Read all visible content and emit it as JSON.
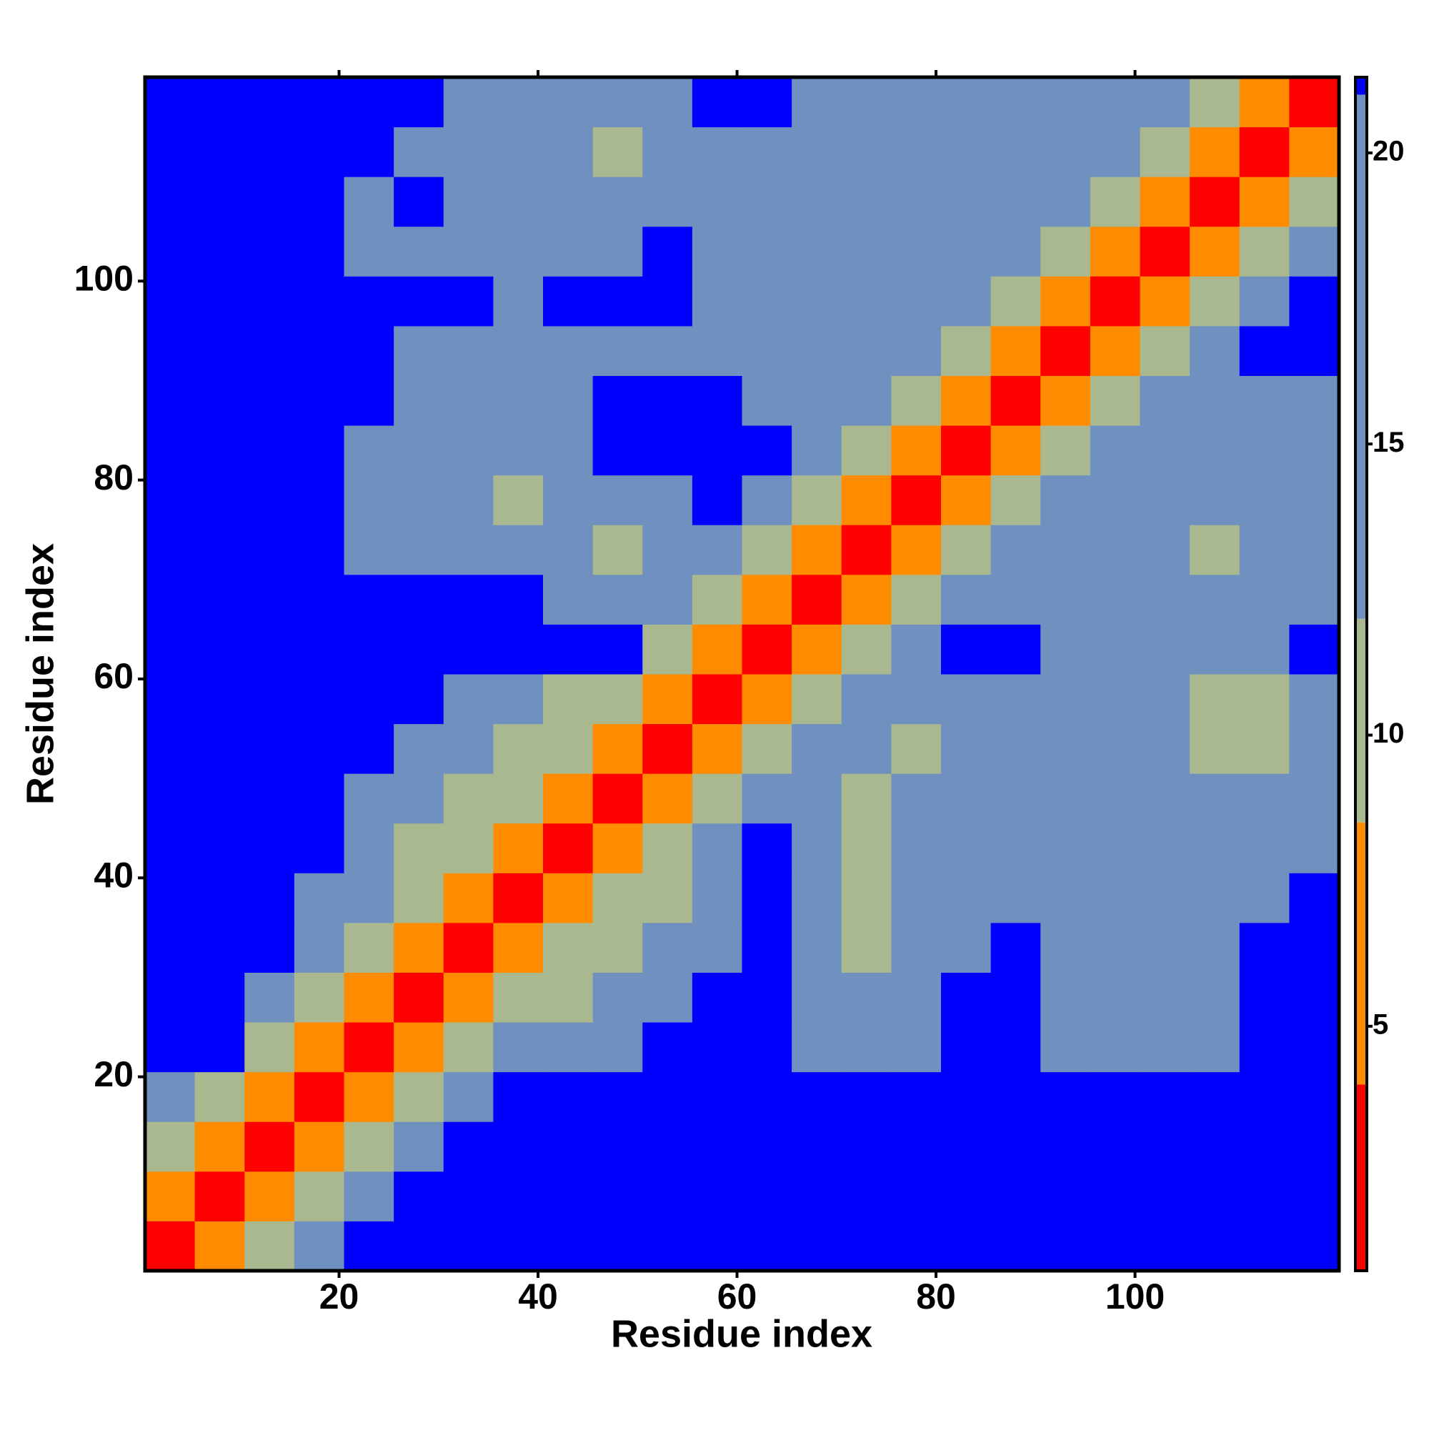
{
  "chart_data": {
    "type": "heatmap",
    "x_label": "Residue index",
    "y_label": "Residue index",
    "xlim": [
      0.5,
      120.5
    ],
    "ylim": [
      0.5,
      120.5
    ],
    "xticks": [
      20,
      40,
      60,
      80,
      100
    ],
    "yticks": [
      20,
      40,
      60,
      80,
      100
    ],
    "xbins": [
      0.5,
      5.5,
      10.5,
      15.5,
      20.5,
      25.5,
      30.5,
      35.5,
      40.5,
      45.5,
      50.5,
      55.5,
      60.5,
      65.5,
      70.5,
      75.5,
      80.5,
      85.5,
      90.5,
      95.5,
      100.5,
      105.5,
      110.5,
      115.5,
      120.5
    ],
    "ybins": [
      0.5,
      5.5,
      10.5,
      15.5,
      20.5,
      25.5,
      30.5,
      35.5,
      40.5,
      45.5,
      50.5,
      55.5,
      60.5,
      65.5,
      70.5,
      75.5,
      80.5,
      85.5,
      90.5,
      95.5,
      100.5,
      105.5,
      110.5,
      115.5,
      120.5
    ],
    "clim": [
      0.8,
      21.3
    ],
    "cticks": [
      5,
      10,
      15,
      20
    ],
    "colorscale": {
      "bounds": [
        4,
        8.5,
        12,
        21
      ],
      "colors": [
        "#ff0000",
        "#ff8c00",
        "#a9b88e",
        "#7090bf",
        "#0000ff"
      ]
    },
    "values": [
      [
        3,
        7,
        11,
        16,
        22,
        22,
        22,
        22,
        22,
        22,
        22,
        22,
        22,
        22,
        22,
        22,
        22,
        22,
        22,
        22,
        22,
        22,
        22,
        22
      ],
      [
        7,
        3,
        7,
        11,
        16,
        22,
        22,
        22,
        22,
        22,
        22,
        22,
        22,
        22,
        22,
        22,
        22,
        22,
        22,
        22,
        22,
        22,
        22,
        22
      ],
      [
        11,
        7,
        3,
        7,
        11,
        16,
        22,
        22,
        22,
        22,
        22,
        22,
        22,
        22,
        22,
        22,
        22,
        22,
        22,
        22,
        22,
        22,
        22,
        22
      ],
      [
        16,
        11,
        7,
        3,
        7,
        11,
        16,
        22,
        22,
        22,
        22,
        22,
        22,
        22,
        22,
        22,
        22,
        22,
        22,
        22,
        22,
        22,
        22,
        22
      ],
      [
        22,
        22,
        11,
        7,
        3,
        7,
        11,
        16,
        16,
        16,
        22,
        22,
        22,
        16,
        16,
        16,
        22,
        22,
        16,
        16,
        16,
        16,
        22,
        22
      ],
      [
        22,
        22,
        16,
        11,
        7,
        3,
        7,
        11,
        11,
        16,
        16,
        22,
        22,
        16,
        16,
        16,
        22,
        22,
        16,
        16,
        16,
        16,
        22,
        22
      ],
      [
        22,
        22,
        22,
        16,
        11,
        7,
        3,
        7,
        11,
        11,
        16,
        16,
        22,
        16,
        11,
        16,
        16,
        22,
        16,
        16,
        16,
        16,
        22,
        22
      ],
      [
        22,
        22,
        22,
        16,
        16,
        11,
        7,
        3,
        7,
        11,
        11,
        16,
        22,
        16,
        11,
        16,
        16,
        16,
        16,
        16,
        16,
        16,
        16,
        22
      ],
      [
        22,
        22,
        22,
        22,
        16,
        11,
        11,
        7,
        3,
        7,
        11,
        16,
        22,
        16,
        11,
        16,
        16,
        16,
        16,
        16,
        16,
        16,
        16,
        16
      ],
      [
        22,
        22,
        22,
        22,
        16,
        16,
        11,
        11,
        7,
        3,
        7,
        11,
        16,
        16,
        11,
        16,
        16,
        16,
        16,
        16,
        16,
        16,
        16,
        16
      ],
      [
        22,
        22,
        22,
        22,
        22,
        16,
        16,
        11,
        11,
        7,
        3,
        7,
        11,
        16,
        16,
        11,
        16,
        16,
        16,
        16,
        16,
        11,
        11,
        16
      ],
      [
        22,
        22,
        22,
        22,
        22,
        22,
        16,
        16,
        11,
        11,
        7,
        3,
        7,
        11,
        16,
        16,
        16,
        16,
        16,
        16,
        16,
        11,
        11,
        16
      ],
      [
        22,
        22,
        22,
        22,
        22,
        22,
        22,
        22,
        22,
        22,
        11,
        7,
        3,
        7,
        11,
        16,
        22,
        22,
        16,
        16,
        16,
        16,
        16,
        22
      ],
      [
        22,
        22,
        22,
        22,
        22,
        22,
        22,
        22,
        16,
        16,
        16,
        11,
        7,
        3,
        7,
        11,
        16,
        16,
        16,
        16,
        16,
        16,
        16,
        16
      ],
      [
        22,
        22,
        22,
        22,
        16,
        16,
        16,
        16,
        16,
        11,
        16,
        16,
        11,
        7,
        3,
        7,
        11,
        16,
        16,
        16,
        16,
        11,
        16,
        16
      ],
      [
        22,
        22,
        22,
        22,
        16,
        16,
        16,
        11,
        16,
        16,
        16,
        22,
        16,
        11,
        7,
        3,
        7,
        11,
        16,
        16,
        16,
        16,
        16,
        16
      ],
      [
        22,
        22,
        22,
        22,
        16,
        16,
        16,
        16,
        16,
        22,
        22,
        22,
        22,
        16,
        11,
        7,
        3,
        7,
        11,
        16,
        16,
        16,
        16,
        16
      ],
      [
        22,
        22,
        22,
        22,
        22,
        16,
        16,
        16,
        16,
        22,
        22,
        22,
        16,
        16,
        16,
        11,
        7,
        3,
        7,
        11,
        16,
        16,
        16,
        16
      ],
      [
        22,
        22,
        22,
        22,
        22,
        16,
        16,
        16,
        16,
        16,
        16,
        16,
        16,
        16,
        16,
        16,
        11,
        7,
        3,
        7,
        11,
        16,
        22,
        22
      ],
      [
        22,
        22,
        22,
        22,
        22,
        22,
        22,
        16,
        22,
        22,
        22,
        16,
        16,
        16,
        16,
        16,
        16,
        11,
        7,
        3,
        7,
        11,
        16,
        22
      ],
      [
        22,
        22,
        22,
        22,
        16,
        16,
        16,
        16,
        16,
        16,
        22,
        16,
        16,
        16,
        16,
        16,
        16,
        16,
        11,
        7,
        3,
        7,
        11,
        16
      ],
      [
        22,
        22,
        22,
        22,
        16,
        22,
        16,
        16,
        16,
        16,
        16,
        16,
        16,
        16,
        16,
        16,
        16,
        16,
        16,
        11,
        7,
        3,
        7,
        11
      ],
      [
        22,
        22,
        22,
        22,
        22,
        16,
        16,
        16,
        16,
        11,
        16,
        16,
        16,
        16,
        16,
        16,
        16,
        16,
        16,
        16,
        11,
        7,
        3,
        7
      ],
      [
        22,
        22,
        22,
        22,
        22,
        22,
        16,
        16,
        16,
        16,
        16,
        22,
        22,
        16,
        16,
        16,
        16,
        16,
        16,
        16,
        16,
        11,
        7,
        3
      ]
    ]
  }
}
